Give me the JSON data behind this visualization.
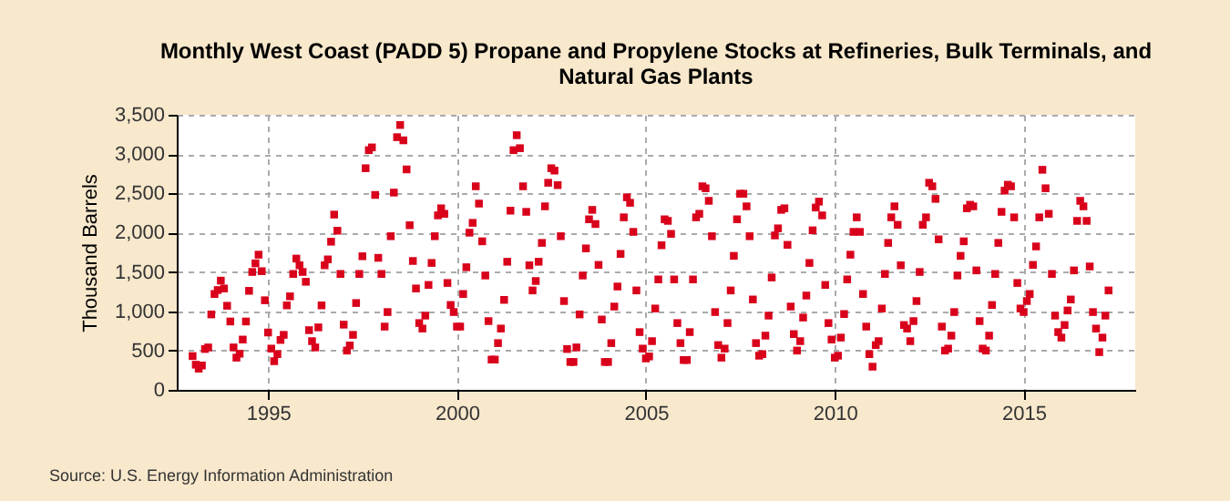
{
  "chart_data": {
    "type": "scatter",
    "title": "Monthly West Coast (PADD 5) Propane and Propylene Stocks at Refineries, Bulk Terminals, and Natural Gas Plants",
    "ylabel": "Thousand Barrels",
    "marker": "square",
    "grid": true,
    "legend": false,
    "annotations": [
      "Source: U.S. Energy Information Administration"
    ],
    "xlim": [
      "1992-08",
      "2017-12-15"
    ],
    "xticks": [
      "1995",
      "2000",
      "2005",
      "2010",
      "2015"
    ],
    "ylim": [
      0,
      3500
    ],
    "yticks": [
      0,
      500,
      {
        "value": 1000,
        "label": "1,000"
      },
      {
        "value": 1500,
        "label": "1,500"
      },
      {
        "value": 2000,
        "label": "2,000"
      },
      {
        "value": 2500,
        "label": "2,500"
      },
      {
        "value": 3000,
        "label": "3,000"
      },
      {
        "value": 3500,
        "label": "3,500"
      }
    ],
    "series": [
      {
        "color": "#d9001b",
        "x": [
          "1993-01",
          "1993-02",
          "1993-03",
          "1993-04",
          "1993-05",
          "1993-06",
          "1993-07",
          "1993-08",
          "1993-09",
          "1993-10",
          "1993-11",
          "1993-12",
          "1994-01",
          "1994-02",
          "1994-03",
          "1994-04",
          "1994-05",
          "1994-06",
          "1994-07",
          "1994-08",
          "1994-09",
          "1994-10",
          "1994-11",
          "1994-12",
          "1995-01",
          "1995-02",
          "1995-03",
          "1995-04",
          "1995-05",
          "1995-06",
          "1995-07",
          "1995-08",
          "1995-09",
          "1995-10",
          "1995-11",
          "1995-12",
          "1996-01",
          "1996-02",
          "1996-03",
          "1996-04",
          "1996-05",
          "1996-06",
          "1996-07",
          "1996-08",
          "1996-09",
          "1996-10",
          "1996-11",
          "1996-12",
          "1997-01",
          "1997-02",
          "1997-03",
          "1997-04",
          "1997-05",
          "1997-06",
          "1997-07",
          "1997-08",
          "1997-09",
          "1997-10",
          "1997-11",
          "1997-12",
          "1998-01",
          "1998-02",
          "1998-03",
          "1998-04",
          "1998-05",
          "1998-06",
          "1998-07",
          "1998-08",
          "1998-09",
          "1998-10",
          "1998-11",
          "1998-12",
          "1999-01",
          "1999-02",
          "1999-03",
          "1999-04",
          "1999-05",
          "1999-06",
          "1999-07",
          "1999-08",
          "1999-09",
          "1999-10",
          "1999-11",
          "1999-12",
          "2000-01",
          "2000-02",
          "2000-03",
          "2000-04",
          "2000-05",
          "2000-06",
          "2000-07",
          "2000-08",
          "2000-09",
          "2000-10",
          "2000-11",
          "2000-12",
          "2001-01",
          "2001-02",
          "2001-03",
          "2001-04",
          "2001-05",
          "2001-06",
          "2001-07",
          "2001-08",
          "2001-09",
          "2001-10",
          "2001-11",
          "2001-12",
          "2002-01",
          "2002-02",
          "2002-03",
          "2002-04",
          "2002-05",
          "2002-06",
          "2002-07",
          "2002-08",
          "2002-09",
          "2002-10",
          "2002-11",
          "2002-12",
          "2003-01",
          "2003-02",
          "2003-03",
          "2003-04",
          "2003-05",
          "2003-06",
          "2003-07",
          "2003-08",
          "2003-09",
          "2003-10",
          "2003-11",
          "2003-12",
          "2004-01",
          "2004-02",
          "2004-03",
          "2004-04",
          "2004-05",
          "2004-06",
          "2004-07",
          "2004-08",
          "2004-09",
          "2004-10",
          "2004-11",
          "2004-12",
          "2005-01",
          "2005-02",
          "2005-03",
          "2005-04",
          "2005-05",
          "2005-06",
          "2005-07",
          "2005-08",
          "2005-09",
          "2005-10",
          "2005-11",
          "2005-12",
          "2006-01",
          "2006-02",
          "2006-03",
          "2006-04",
          "2006-05",
          "2006-06",
          "2006-07",
          "2006-08",
          "2006-09",
          "2006-10",
          "2006-11",
          "2006-12",
          "2007-01",
          "2007-02",
          "2007-03",
          "2007-04",
          "2007-05",
          "2007-06",
          "2007-07",
          "2007-08",
          "2007-09",
          "2007-10",
          "2007-11",
          "2007-12",
          "2008-01",
          "2008-02",
          "2008-03",
          "2008-04",
          "2008-05",
          "2008-06",
          "2008-07",
          "2008-08",
          "2008-09",
          "2008-10",
          "2008-11",
          "2008-12",
          "2009-01",
          "2009-02",
          "2009-03",
          "2009-04",
          "2009-05",
          "2009-06",
          "2009-07",
          "2009-08",
          "2009-09",
          "2009-10",
          "2009-11",
          "2009-12",
          "2010-01",
          "2010-02",
          "2010-03",
          "2010-04",
          "2010-05",
          "2010-06",
          "2010-07",
          "2010-08",
          "2010-09",
          "2010-10",
          "2010-11",
          "2010-12",
          "2011-01",
          "2011-02",
          "2011-03",
          "2011-04",
          "2011-05",
          "2011-06",
          "2011-07",
          "2011-08",
          "2011-09",
          "2011-10",
          "2011-11",
          "2011-12",
          "2012-01",
          "2012-02",
          "2012-03",
          "2012-04",
          "2012-05",
          "2012-06",
          "2012-07",
          "2012-08",
          "2012-09",
          "2012-10",
          "2012-11",
          "2012-12",
          "2013-01",
          "2013-02",
          "2013-03",
          "2013-04",
          "2013-05",
          "2013-06",
          "2013-07",
          "2013-08",
          "2013-09",
          "2013-10",
          "2013-11",
          "2013-12",
          "2014-01",
          "2014-02",
          "2014-03",
          "2014-04",
          "2014-05",
          "2014-06",
          "2014-07",
          "2014-08",
          "2014-09",
          "2014-10",
          "2014-11",
          "2014-12",
          "2015-01",
          "2015-02",
          "2015-03",
          "2015-04",
          "2015-05",
          "2015-06",
          "2015-07",
          "2015-08",
          "2015-09",
          "2015-10",
          "2015-11",
          "2015-12",
          "2016-01",
          "2016-02",
          "2016-03",
          "2016-04",
          "2016-05",
          "2016-06",
          "2016-07",
          "2016-08",
          "2016-09",
          "2016-10",
          "2016-11",
          "2016-12",
          "2017-01",
          "2017-02",
          "2017-03",
          "2017-04"
        ],
        "values": [
          430,
          320,
          270,
          310,
          520,
          540,
          960,
          1220,
          1270,
          1390,
          1290,
          1070,
          870,
          540,
          410,
          460,
          640,
          870,
          1260,
          1500,
          1610,
          1720,
          1510,
          1140,
          730,
          525,
          365,
          455,
          635,
          700,
          1075,
          1190,
          1475,
          1670,
          1585,
          1500,
          1375,
          760,
          620,
          540,
          795,
          1075,
          1585,
          1660,
          1885,
          2230,
          2025,
          1475,
          830,
          500,
          565,
          700,
          1105,
          1475,
          1700,
          2820,
          3050,
          3085,
          2480,
          1680,
          1475,
          805,
          990,
          1955,
          2510,
          3215,
          3370,
          3175,
          2805,
          2095,
          1640,
          1290,
          850,
          780,
          945,
          1335,
          1615,
          1955,
          2220,
          2310,
          2240,
          1360,
          1080,
          990,
          805,
          805,
          1220,
          1560,
          2000,
          2125,
          2590,
          2370,
          1890,
          1455,
          875,
          385,
          385,
          595,
          780,
          1145,
          1630,
          2280,
          3050,
          3240,
          3075,
          2590,
          2265,
          1585,
          1265,
          1385,
          1630,
          1870,
          2335,
          2635,
          2820,
          2790,
          2605,
          1955,
          1130,
          520,
          355,
          355,
          540,
          960,
          1455,
          1800,
          2170,
          2290,
          2110,
          1590,
          895,
          355,
          355,
          595,
          1060,
          1315,
          1730,
          2195,
          2450,
          2380,
          2010,
          1265,
          735,
          525,
          400,
          425,
          620,
          1035,
          1405,
          1840,
          2170,
          2150,
          1985,
          1405,
          850,
          595,
          380,
          380,
          735,
          1405,
          2195,
          2240,
          2590,
          2565,
          2405,
          1955,
          990,
          570,
          410,
          525,
          850,
          1265,
          1705,
          2170,
          2495,
          2495,
          2335,
          1955,
          1150,
          595,
          435,
          455,
          690,
          945,
          1430,
          1965,
          2055,
          2290,
          2310,
          1845,
          1060,
          710,
          500,
          620,
          920,
          1200,
          1615,
          2030,
          2320,
          2395,
          2220,
          1335,
          850,
          640,
          410,
          435,
          665,
          965,
          1405,
          1720,
          2010,
          2195,
          2010,
          1220,
          805,
          455,
          295,
          570,
          620,
          1035,
          1475,
          1870,
          2195,
          2335,
          2100,
          1585,
          825,
          780,
          620,
          875,
          1130,
          1500,
          2100,
          2195,
          2635,
          2590,
          2430,
          1915,
          805,
          500,
          525,
          690,
          990,
          1455,
          1705,
          1890,
          2310,
          2355,
          2335,
          1520,
          875,
          525,
          500,
          690,
          1080,
          1475,
          1870,
          2265,
          2535,
          2610,
          2590,
          2195,
          1360,
          1035,
          990,
          1130,
          1220,
          1590,
          1825,
          2195,
          2800,
          2565,
          2240,
          1475,
          945,
          735,
          665,
          825,
          1010,
          1150,
          1520,
          2150,
          2405,
          2335,
          2150,
          1570,
          990,
          780,
          480,
          665,
          945,
          1265
        ]
      }
    ]
  }
}
